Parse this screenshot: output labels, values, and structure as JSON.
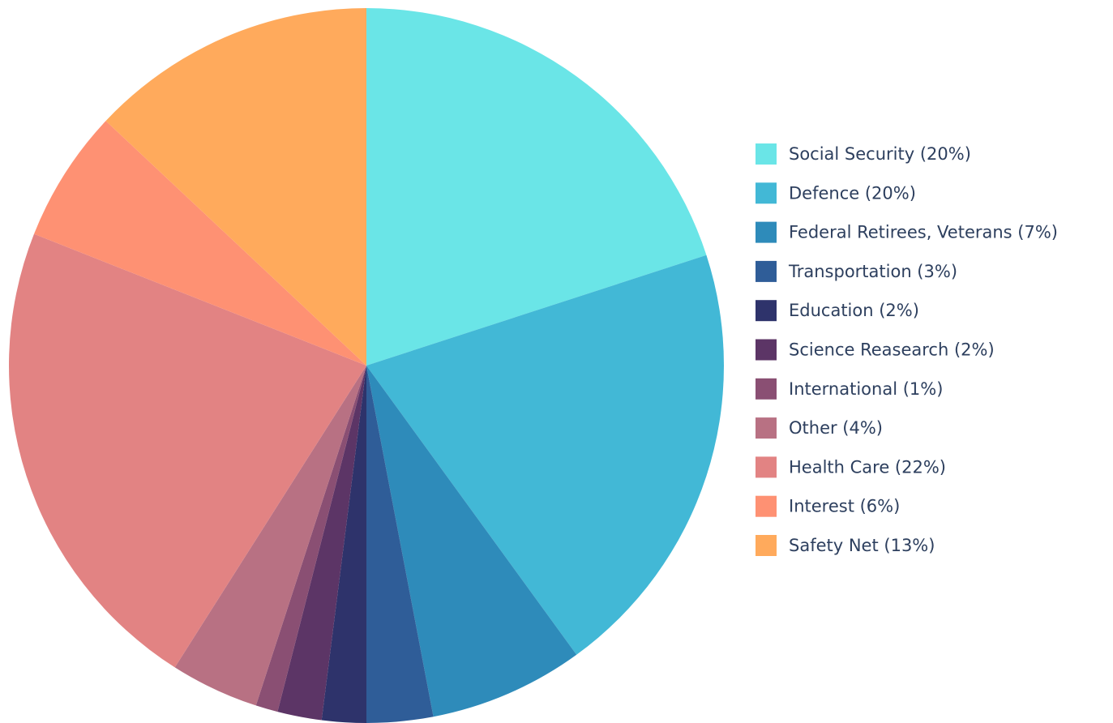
{
  "chart_data": {
    "type": "pie",
    "categories": [
      "Social Security (20%)",
      "Defence (20%)",
      "Federal Retirees, Veterans (7%)",
      "Transportation (3%)",
      "Education (2%)",
      "Science Reasearch (2%)",
      "International (1%)",
      "Other (4%)",
      "Health Care (22%)",
      "Interest (6%)",
      "Safety Net (13%)"
    ],
    "values": [
      20,
      20,
      7,
      3,
      2,
      2,
      1,
      4,
      22,
      6,
      13
    ],
    "colors": [
      "#6ae5e7",
      "#42b8d6",
      "#2e8bba",
      "#2f5d98",
      "#2e336b",
      "#5c3566",
      "#8a4f73",
      "#b87183",
      "#e28383",
      "#fe9173",
      "#ffaa5c"
    ],
    "legend": "right"
  }
}
